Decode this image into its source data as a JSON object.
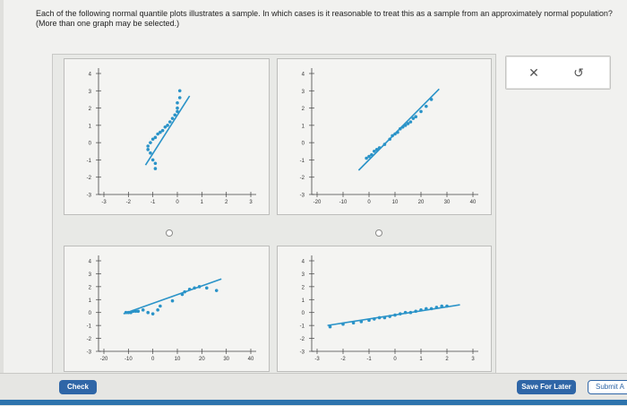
{
  "question": {
    "text": "Each of the following normal quantile plots illustrates a sample. In which cases is it reasonable to treat this as a sample from an approximately normal population? (More than one graph may be selected.)"
  },
  "plots": [
    {
      "x_ticks": [
        "-3",
        "-2",
        "-1",
        "0",
        "1",
        "2",
        "3"
      ],
      "y_ticks": [
        "4",
        "3",
        "2",
        "1",
        "0",
        "-1",
        "-2",
        "-3"
      ],
      "xlim": [
        -3,
        3
      ],
      "ylim": [
        -3,
        4
      ],
      "line": [
        [
          -1.3,
          -1.3
        ],
        [
          0.5,
          2.7
        ]
      ],
      "points": [
        [
          -0.9,
          -1.5
        ],
        [
          -0.9,
          -1.2
        ],
        [
          -1.0,
          -1.0
        ],
        [
          -1.1,
          -0.6
        ],
        [
          -1.2,
          -0.4
        ],
        [
          -1.2,
          -0.2
        ],
        [
          -1.1,
          0.0
        ],
        [
          -1.0,
          0.2
        ],
        [
          -0.9,
          0.3
        ],
        [
          -0.8,
          0.5
        ],
        [
          -0.7,
          0.6
        ],
        [
          -0.6,
          0.7
        ],
        [
          -0.5,
          0.9
        ],
        [
          -0.4,
          1.0
        ],
        [
          -0.3,
          1.2
        ],
        [
          -0.2,
          1.4
        ],
        [
          -0.1,
          1.6
        ],
        [
          0.0,
          1.8
        ],
        [
          0.0,
          2.0
        ],
        [
          0.0,
          2.3
        ],
        [
          0.1,
          2.6
        ],
        [
          0.1,
          3.0
        ]
      ]
    },
    {
      "x_ticks": [
        "-20",
        "-10",
        "0",
        "10",
        "20",
        "30",
        "40"
      ],
      "y_ticks": [
        "4",
        "3",
        "2",
        "1",
        "0",
        "-1",
        "-2",
        "-3"
      ],
      "xlim": [
        -20,
        40
      ],
      "ylim": [
        -3,
        4
      ],
      "line": [
        [
          -4,
          -1.6
        ],
        [
          27,
          3.1
        ]
      ],
      "points": [
        [
          -1,
          -0.9
        ],
        [
          0,
          -0.8
        ],
        [
          1,
          -0.7
        ],
        [
          2,
          -0.5
        ],
        [
          3,
          -0.4
        ],
        [
          4,
          -0.3
        ],
        [
          6,
          -0.1
        ],
        [
          8,
          0.2
        ],
        [
          9,
          0.4
        ],
        [
          10,
          0.5
        ],
        [
          11,
          0.6
        ],
        [
          12,
          0.8
        ],
        [
          13,
          0.9
        ],
        [
          14,
          1.0
        ],
        [
          15,
          1.1
        ],
        [
          16,
          1.2
        ],
        [
          17,
          1.4
        ],
        [
          18,
          1.5
        ],
        [
          20,
          1.8
        ],
        [
          22,
          2.1
        ],
        [
          24,
          2.5
        ]
      ]
    },
    {
      "x_ticks": [
        "-20",
        "-10",
        "0",
        "10",
        "20",
        "30",
        "40"
      ],
      "y_ticks": [
        "4",
        "3",
        "2",
        "1",
        "0",
        "-1",
        "-2",
        "-3"
      ],
      "xlim": [
        -20,
        40
      ],
      "ylim": [
        -3,
        4
      ],
      "line": [
        [
          -12,
          -0.1
        ],
        [
          28,
          2.6
        ]
      ],
      "points": [
        [
          -11,
          0.0
        ],
        [
          -10,
          0.0
        ],
        [
          -9,
          0.0
        ],
        [
          -8,
          0.1
        ],
        [
          -7,
          0.1
        ],
        [
          -6,
          0.1
        ],
        [
          -4,
          0.2
        ],
        [
          -2,
          0.0
        ],
        [
          0,
          -0.1
        ],
        [
          2,
          0.2
        ],
        [
          3,
          0.5
        ],
        [
          8,
          0.9
        ],
        [
          12,
          1.4
        ],
        [
          13,
          1.6
        ],
        [
          15,
          1.8
        ],
        [
          17,
          1.9
        ],
        [
          19,
          2.0
        ],
        [
          22,
          1.9
        ],
        [
          26,
          1.7
        ]
      ]
    },
    {
      "x_ticks": [
        "-3",
        "-2",
        "-1",
        "0",
        "1",
        "2",
        "3"
      ],
      "y_ticks": [
        "4",
        "3",
        "2",
        "1",
        "0",
        "-1",
        "-2",
        "-3"
      ],
      "xlim": [
        -3,
        3
      ],
      "ylim": [
        -3,
        4
      ],
      "line": [
        [
          -2.6,
          -1.0
        ],
        [
          2.5,
          0.6
        ]
      ],
      "points": [
        [
          -2.5,
          -1.1
        ],
        [
          -2.0,
          -0.9
        ],
        [
          -1.6,
          -0.8
        ],
        [
          -1.3,
          -0.7
        ],
        [
          -1.0,
          -0.6
        ],
        [
          -0.8,
          -0.5
        ],
        [
          -0.6,
          -0.4
        ],
        [
          -0.4,
          -0.4
        ],
        [
          -0.2,
          -0.3
        ],
        [
          0.0,
          -0.2
        ],
        [
          0.2,
          -0.1
        ],
        [
          0.4,
          0.0
        ],
        [
          0.6,
          0.0
        ],
        [
          0.8,
          0.1
        ],
        [
          1.0,
          0.2
        ],
        [
          1.2,
          0.3
        ],
        [
          1.4,
          0.3
        ],
        [
          1.6,
          0.4
        ],
        [
          1.8,
          0.5
        ],
        [
          2.0,
          0.5
        ]
      ]
    }
  ],
  "toolbox": {
    "clear_icon": "close-icon",
    "undo_icon": "undo-icon",
    "clear_glyph": "✕",
    "undo_glyph": "↺"
  },
  "footer": {
    "check_label": "Check",
    "save_label": "Save For Later",
    "submit_label": "Submit A"
  },
  "colors": {
    "accent": "#2f66a7",
    "plot": "#2a93c8"
  }
}
